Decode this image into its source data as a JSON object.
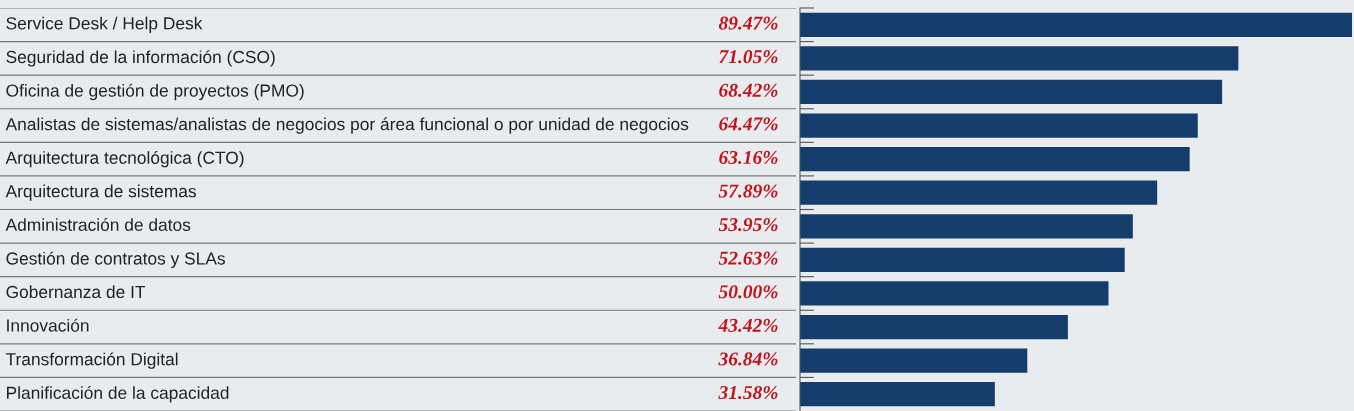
{
  "chart_data": {
    "type": "bar",
    "orientation": "horizontal",
    "categories": [
      "Service Desk / Help Desk",
      "Seguridad de la información (CSO)",
      "Oficina de gestión de proyectos (PMO)",
      "Analistas de sistemas/analistas de negocios por área funcional o por unidad de negocios",
      "Arquitectura tecnológica (CTO)",
      "Arquitectura de sistemas",
      "Administración de datos",
      "Gestión de contratos y SLAs",
      "Gobernanza de IT",
      "Innovación",
      "Transformación Digital",
      "Planificación de la capacidad"
    ],
    "values": [
      89.47,
      71.05,
      68.42,
      64.47,
      63.16,
      57.89,
      53.95,
      52.63,
      50.0,
      43.42,
      36.84,
      31.58
    ],
    "value_labels": [
      "89.47%",
      "71.05%",
      "68.42%",
      "64.47%",
      "63.16%",
      "57.89%",
      "53.95%",
      "52.63%",
      "50.00%",
      "43.42%",
      "36.84%",
      "31.58%"
    ],
    "color": "#143d6b",
    "grid": false,
    "legend": false
  }
}
